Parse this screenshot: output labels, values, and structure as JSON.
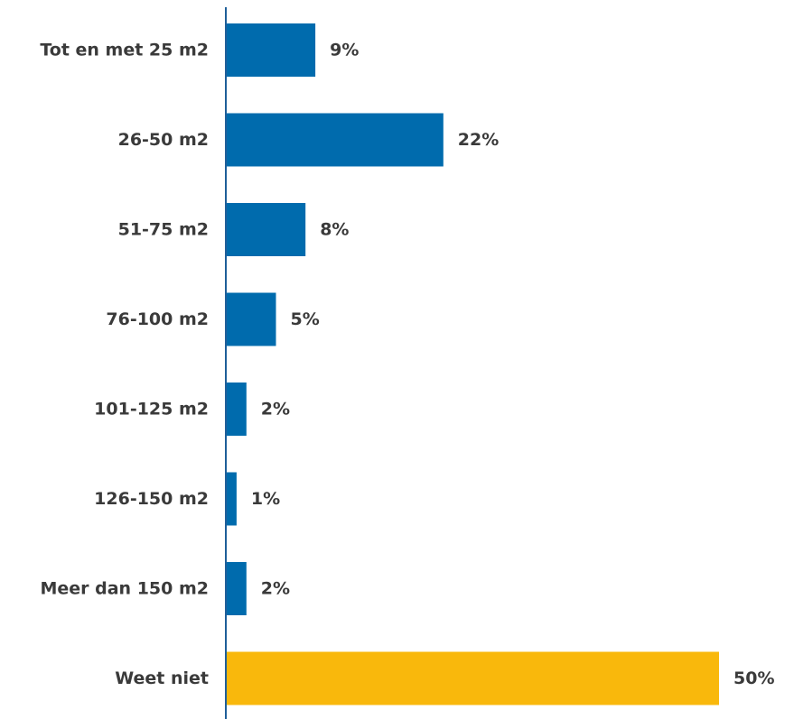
{
  "chart_data": {
    "type": "bar",
    "orientation": "horizontal",
    "categories": [
      "Tot en met 25 m2",
      "26-50 m2",
      "51-75 m2",
      "76-100 m2",
      "101-125 m2",
      "126-150 m2",
      "Meer dan 150 m2",
      "Weet niet"
    ],
    "values": [
      9,
      22,
      8,
      5,
      2,
      1,
      2,
      50
    ],
    "value_labels": [
      "9%",
      "22%",
      "8%",
      "5%",
      "2%",
      "1%",
      "2%",
      "50%"
    ],
    "unit": "%",
    "title": "",
    "xlabel": "",
    "ylabel": "",
    "xlim": [
      0,
      50
    ],
    "grid": false,
    "legend": "none",
    "colors": {
      "default": "#006bad",
      "highlight": "#f9b80c",
      "axis": "#1f5f99",
      "text": "#3a3a3a"
    },
    "highlight_index": 7
  }
}
